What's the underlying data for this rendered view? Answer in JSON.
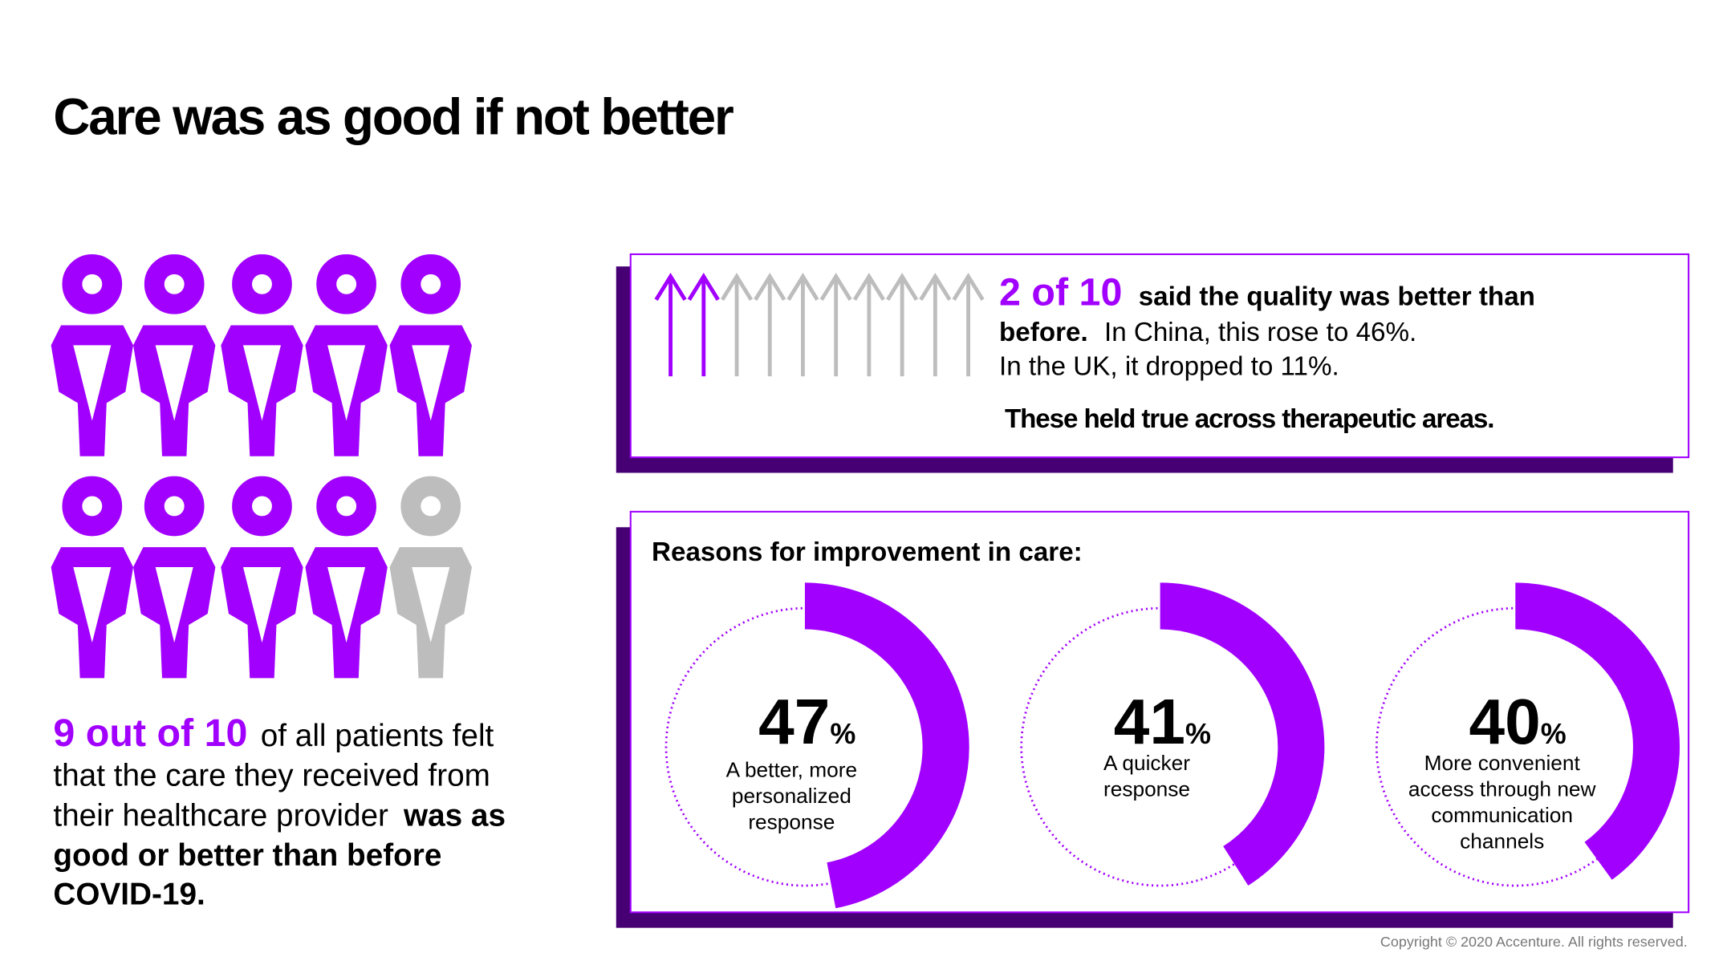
{
  "title": "Care was as good if not better",
  "colors": {
    "accent": "#a100ff",
    "muted": "#bdbdbd",
    "shadow": "#460073"
  },
  "people": {
    "count": 9,
    "of": 10,
    "label": "9 out of 10",
    "text": [
      "of all patients felt",
      "that the care they received from",
      "their healthcare provider"
    ],
    "bold": [
      "was as",
      "good or better than before",
      "COVID-19."
    ]
  },
  "quality": {
    "count": 2,
    "of": 10,
    "label": "2 of 10",
    "bold_1": "said the quality was  better than",
    "bold_2": "before.",
    "text_1": "In China, this rose to 46%.",
    "text_2": "In the UK, it dropped to 11%.",
    "note": "These held true across therapeutic areas."
  },
  "chart_data": {
    "type": "donut",
    "title": "Reasons for improvement in care:",
    "categories": [
      [
        "A better, more",
        "personalized",
        "response"
      ],
      [
        "A quicker",
        "response"
      ],
      [
        "More convenient",
        "access through new",
        "communication",
        "channels"
      ]
    ],
    "values": [
      47,
      41,
      40
    ],
    "unit": "%",
    "color": "#a100ff"
  },
  "copyright": "Copyright © 2020 Accenture. All rights reserved."
}
